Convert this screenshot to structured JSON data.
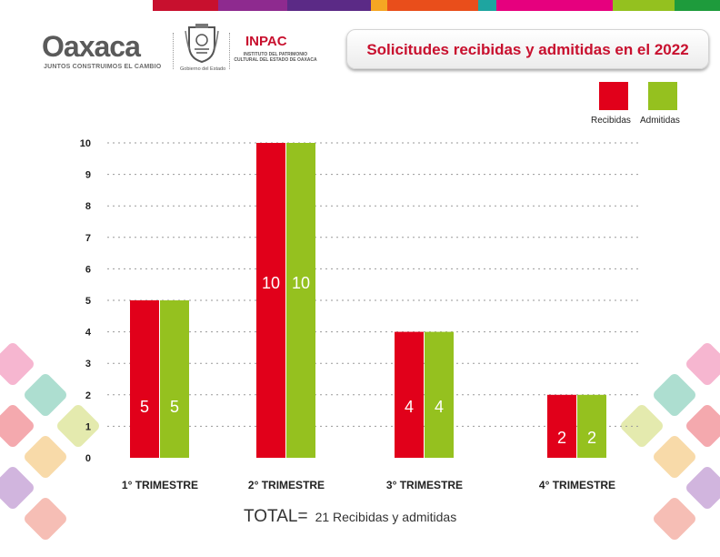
{
  "header": {
    "logo_text": "Oaxaca",
    "logo_tagline": "JUNTOS CONSTRUIMOS EL CAMBIO",
    "gobierno_label": "Gobierno del Estado",
    "institute_acronym": "INPAC",
    "institute_name": "INSTITUTO DEL PATRIMONIO CULTURAL DEL ESTADO DE OAXACA",
    "stripe_colors": [
      "#c8102e",
      "#8e2a8f",
      "#5b2a86",
      "#f5a623",
      "#e94e1b",
      "#1ea5a0",
      "#e6007e",
      "#94c11f",
      "#1e9b3c"
    ]
  },
  "colors": {
    "recibidas": "#e1001a",
    "admitidas": "#95c11f",
    "grid": "#9a9a9a"
  },
  "chart_data": {
    "type": "bar",
    "title": "Solicitudes recibidas y admitidas en el 2022",
    "categories": [
      "1° TRIMESTRE",
      "2° TRIMESTRE",
      "3° TRIMESTRE",
      "4° TRIMESTRE"
    ],
    "series": [
      {
        "name": "Recibidas",
        "values": [
          5,
          10,
          4,
          2
        ]
      },
      {
        "name": "Admitidas",
        "values": [
          5,
          10,
          4,
          2
        ]
      }
    ],
    "ylim": [
      0,
      10
    ],
    "yticks": [
      0,
      1,
      2,
      3,
      4,
      5,
      6,
      7,
      8,
      9,
      10
    ],
    "grid": true,
    "legend_position": "top-right",
    "data_labels": true
  },
  "legend": {
    "recibidas_label": "Recibidas",
    "admitidas_label": "Admitidas"
  },
  "footer": {
    "total_label": "TOTAL=",
    "total_value": "21 Recibidas y admitidas"
  }
}
